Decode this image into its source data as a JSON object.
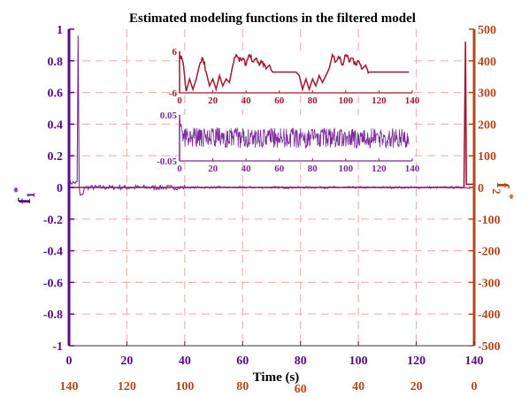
{
  "colors": {
    "left_axis": "#5a0b8a",
    "right_axis": "#b4471b",
    "f1_series": "#7a2a9a",
    "f2_series": "#a3172f",
    "grid": "#f2b4b4"
  },
  "chart_data": {
    "type": "line",
    "title": "Estimated modeling functions in the filtered model",
    "xlabel": "Time (s)",
    "ylabel_left": "f",
    "ylabel_left_sub": "1",
    "ylabel_left_sup": "*",
    "ylabel_right": "f",
    "ylabel_right_sub": "2",
    "ylabel_right_sup": "*",
    "xlim": [
      0,
      140
    ],
    "ylim_left": [
      -1,
      1
    ],
    "ylim_right": [
      -500,
      500
    ],
    "grid": true,
    "x_ticks": [
      "0",
      "20",
      "40",
      "60",
      "80",
      "100",
      "120",
      "140"
    ],
    "x_ticks_secondary": [
      "140",
      "120",
      "100",
      "80",
      "60",
      "40",
      "20",
      "0"
    ],
    "y_ticks_left": [
      "1",
      "0.8",
      "0.6",
      "0.4",
      "0.2",
      "0",
      "-0.2",
      "-0.4",
      "-0.6",
      "-0.8",
      "-1"
    ],
    "y_ticks_right": [
      "500",
      "400",
      "300",
      "200",
      "100",
      "0",
      "-100",
      "-200",
      "-300",
      "-400",
      "-500"
    ],
    "series": [
      {
        "axis": "left",
        "description_points": [
          [
            0,
            0.02
          ],
          [
            3,
            0.05
          ],
          [
            3.2,
            0.96
          ],
          [
            3.4,
            0.0
          ],
          [
            4,
            -0.05
          ],
          [
            10,
            0.01
          ],
          [
            70,
            0.0
          ],
          [
            137,
            0.0
          ],
          [
            140,
            0.0
          ]
        ]
      },
      {
        "axis": "right",
        "description_points": [
          [
            0,
            0
          ],
          [
            136.5,
            0
          ],
          [
            137,
            460
          ],
          [
            137.3,
            10
          ],
          [
            140,
            10
          ]
        ]
      }
    ],
    "insets": [
      {
        "name": "f2-inset",
        "xlim": [
          0,
          140
        ],
        "ylim": [
          -6,
          6
        ],
        "x_ticks": [
          "0",
          "20",
          "40",
          "60",
          "80",
          "100",
          "120",
          "140"
        ],
        "y_ticks": [
          "6",
          "-6"
        ],
        "points": [
          [
            0,
            5
          ],
          [
            2,
            3
          ],
          [
            4,
            -5.5
          ],
          [
            6,
            -2
          ],
          [
            8,
            -5
          ],
          [
            10,
            -2
          ],
          [
            12,
            2
          ],
          [
            14,
            4
          ],
          [
            16,
            0
          ],
          [
            18,
            -4
          ],
          [
            20,
            -2
          ],
          [
            22,
            -5
          ],
          [
            24,
            -1
          ],
          [
            26,
            -4
          ],
          [
            28,
            -2
          ],
          [
            30,
            -3
          ],
          [
            32,
            2
          ],
          [
            34,
            5
          ],
          [
            36,
            3
          ],
          [
            38,
            4
          ],
          [
            40,
            2
          ],
          [
            42,
            5
          ],
          [
            44,
            3
          ],
          [
            46,
            4
          ],
          [
            48,
            2
          ],
          [
            50,
            3
          ],
          [
            52,
            1
          ],
          [
            54,
            2
          ],
          [
            56,
            0
          ],
          [
            58,
            0
          ],
          [
            64,
            0
          ],
          [
            70,
            0
          ],
          [
            72,
            -1
          ],
          [
            74,
            -5
          ],
          [
            76,
            -2
          ],
          [
            78,
            -5
          ],
          [
            80,
            -2
          ],
          [
            82,
            -4
          ],
          [
            84,
            -1
          ],
          [
            86,
            -3
          ],
          [
            88,
            -1
          ],
          [
            90,
            1
          ],
          [
            92,
            5
          ],
          [
            94,
            3
          ],
          [
            96,
            4
          ],
          [
            98,
            2
          ],
          [
            100,
            5
          ],
          [
            102,
            3
          ],
          [
            104,
            4
          ],
          [
            106,
            2
          ],
          [
            108,
            3
          ],
          [
            110,
            1
          ],
          [
            112,
            2
          ],
          [
            114,
            0
          ],
          [
            116,
            0
          ],
          [
            125,
            0
          ],
          [
            138,
            0
          ]
        ]
      },
      {
        "name": "f1-inset",
        "xlim": [
          0,
          140
        ],
        "ylim": [
          -0.05,
          0.05
        ],
        "x_ticks": [
          "0",
          "20",
          "40",
          "60",
          "80",
          "100",
          "120",
          "140"
        ],
        "y_ticks": [
          "0.05",
          "-0.05"
        ],
        "noise_band": [
          -0.022,
          0.022
        ],
        "initial_spike": 0.045
      }
    ]
  }
}
